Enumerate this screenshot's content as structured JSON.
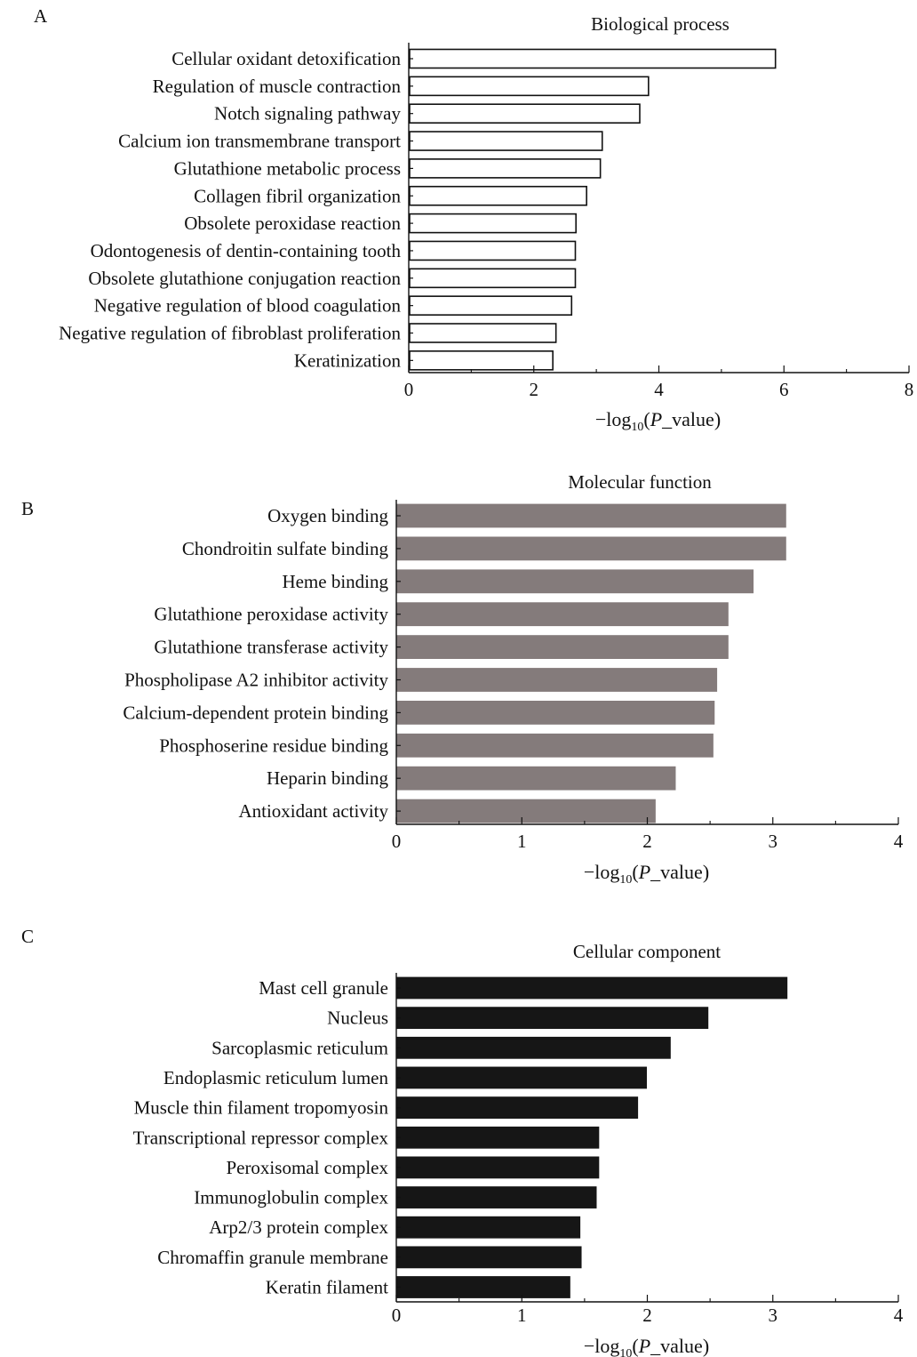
{
  "chart_data": [
    {
      "panel": "A",
      "type": "bar",
      "orientation": "horizontal",
      "title": "Biological process",
      "xlabel": "−log10(P_value)",
      "xlabel_parts": {
        "prefix": "−log",
        "subscript": "10",
        "open": "(",
        "italic": "P",
        "rest": "_value)"
      },
      "xlim": [
        0,
        8
      ],
      "xticks": [
        0,
        2,
        4,
        6,
        8
      ],
      "bar_fill": "#ffffff",
      "bar_stroke": "#111111",
      "categories": [
        "Cellular oxidant detoxification",
        "Regulation of muscle contraction",
        "Notch signaling pathway",
        "Calcium ion transmembrane transport",
        "Glutathione metabolic process",
        "Collagen fibril organization",
        "Obsolete peroxidase reaction",
        "Odontogenesis of dentin-containing tooth",
        "Obsolete glutathione conjugation reaction",
        "Negative regulation of blood coagulation",
        "Negative regulation of fibroblast proliferation",
        "Keratinization"
      ],
      "values": [
        5.85,
        3.82,
        3.68,
        3.08,
        3.05,
        2.83,
        2.66,
        2.65,
        2.65,
        2.59,
        2.34,
        2.29
      ]
    },
    {
      "panel": "B",
      "type": "bar",
      "orientation": "horizontal",
      "title": "Molecular function",
      "xlabel": "−log10(P_value)",
      "xlabel_parts": {
        "prefix": "−log",
        "subscript": "10",
        "open": "(",
        "italic": "P",
        "rest": "_value)"
      },
      "xlim": [
        0,
        4
      ],
      "xticks": [
        0,
        1,
        2,
        3,
        4
      ],
      "bar_fill": "#847b7b",
      "bar_stroke": "#847b7b",
      "categories": [
        "Oxygen binding",
        "Chondroitin sulfate binding",
        "Heme binding",
        "Glutathione peroxidase activity",
        "Glutathione transferase activity",
        "Phospholipase A2 inhibitor activity",
        "Calcium-dependent protein binding",
        "Phosphoserine residue binding",
        "Heparin binding",
        "Antioxidant activity"
      ],
      "values": [
        3.1,
        3.1,
        2.84,
        2.64,
        2.64,
        2.55,
        2.53,
        2.52,
        2.22,
        2.06
      ]
    },
    {
      "panel": "C",
      "type": "bar",
      "orientation": "horizontal",
      "title": "Cellular component",
      "xlabel": "−log10(P_value)",
      "xlabel_parts": {
        "prefix": "−log",
        "subscript": "10",
        "open": "(",
        "italic": "P",
        "rest": "_value)"
      },
      "xlim": [
        0,
        4
      ],
      "xticks": [
        0,
        1,
        2,
        3,
        4
      ],
      "bar_fill": "#161616",
      "bar_stroke": "#161616",
      "categories": [
        "Mast cell granule",
        "Nucleus",
        "Sarcoplasmic reticulum",
        "Endoplasmic reticulum lumen",
        "Muscle thin filament tropomyosin",
        "Transcriptional repressor complex",
        "Peroxisomal complex",
        "Immunoglobulin complex",
        "Arp2/3 protein complex",
        "Chromaffin granule membrane",
        "Keratin filament"
      ],
      "values": [
        3.11,
        2.48,
        2.18,
        1.99,
        1.92,
        1.61,
        1.61,
        1.59,
        1.46,
        1.47,
        1.38
      ]
    }
  ]
}
